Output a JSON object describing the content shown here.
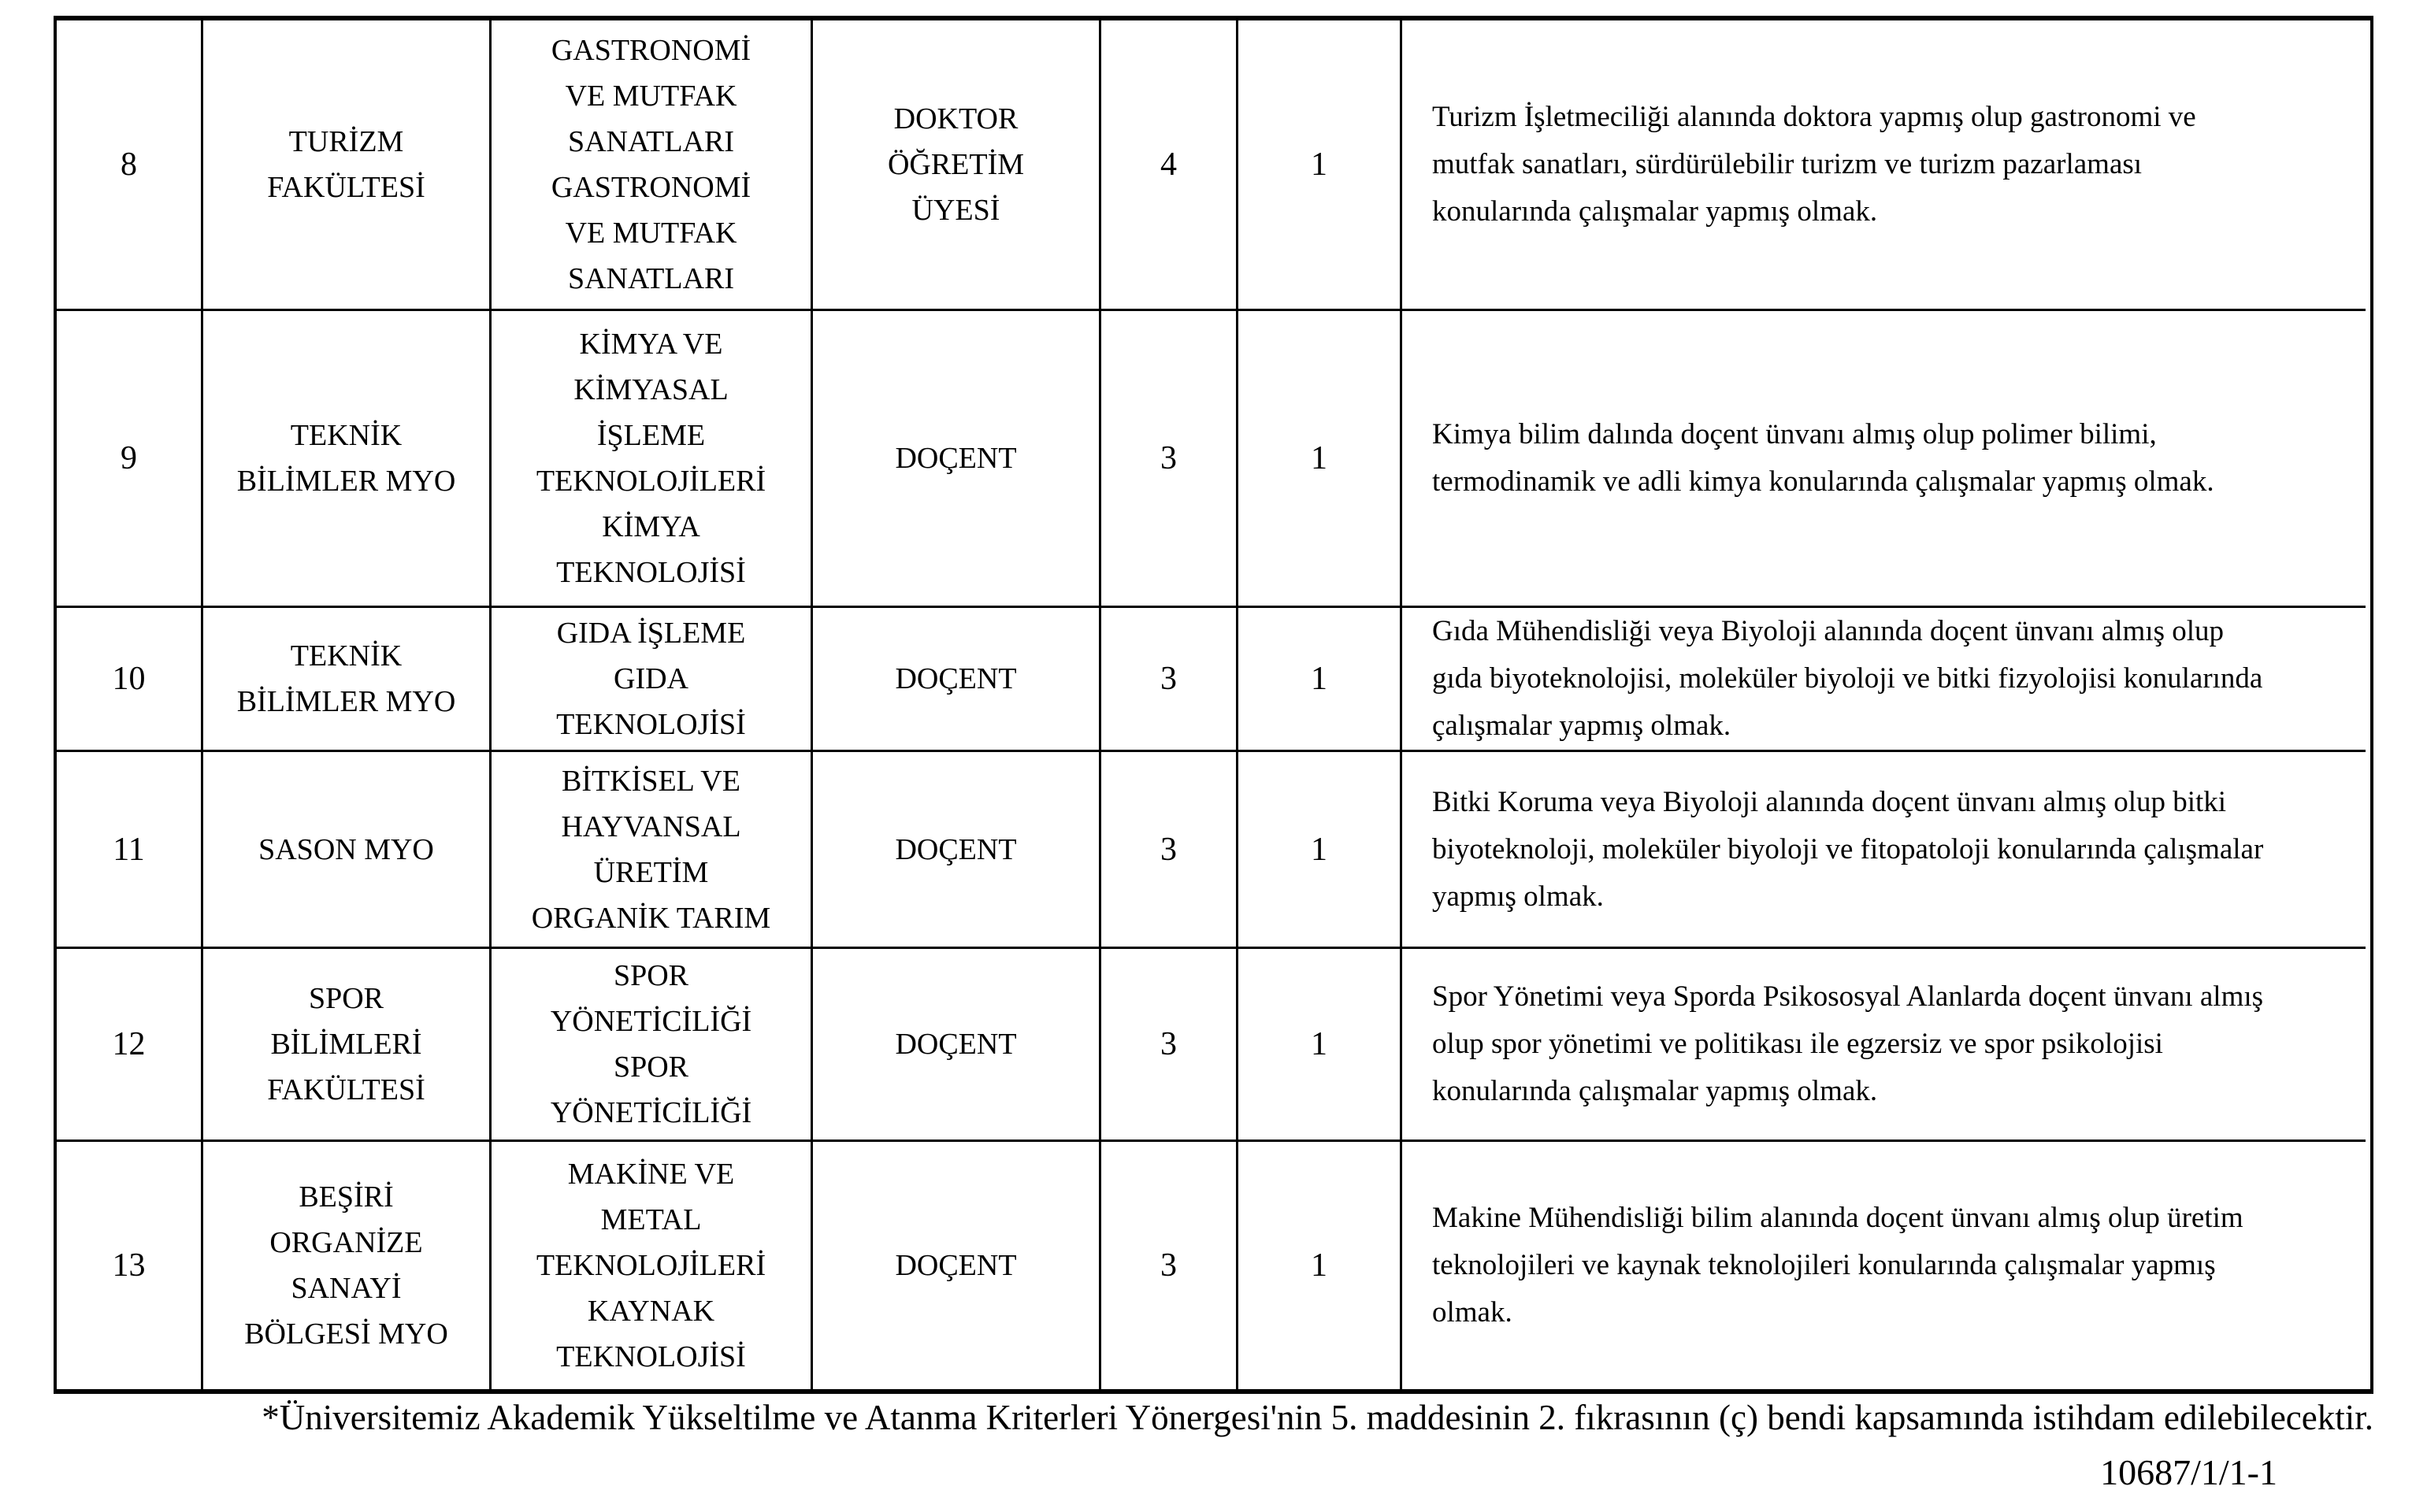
{
  "table": {
    "rows": [
      {
        "no": "8",
        "faculty_lines": [
          "TURİZM",
          "FAKÜLTESİ"
        ],
        "department_lines": [
          "GASTRONOMİ",
          "VE MUTFAK",
          "SANATLARI",
          "GASTRONOMİ",
          "VE MUTFAK",
          "SANATLARI"
        ],
        "title_lines": [
          "DOKTOR",
          "ÖĞRETİM",
          "ÜYESİ"
        ],
        "grade": "4",
        "count": "1",
        "description_lines": [
          "Turizm İşletmeciliği alanında doktora yapmış olup gastronomi ve",
          "mutfak sanatları, sürdürülebilir turizm ve turizm pazarlaması",
          "konularında çalışmalar yapmış olmak."
        ]
      },
      {
        "no": "9",
        "faculty_lines": [
          "TEKNİK",
          "BİLİMLER MYO"
        ],
        "department_lines": [
          "KİMYA VE",
          "KİMYASAL",
          "İŞLEME",
          "TEKNOLOJİLERİ",
          "KİMYA",
          "TEKNOLOJİSİ"
        ],
        "title_lines": [
          "DOÇENT"
        ],
        "grade": "3",
        "count": "1",
        "description_lines": [
          "Kimya bilim dalında doçent ünvanı almış olup polimer bilimi,",
          "termodinamik ve adli kimya konularında çalışmalar yapmış olmak."
        ]
      },
      {
        "no": "10",
        "faculty_lines": [
          "TEKNİK",
          "BİLİMLER MYO"
        ],
        "department_lines": [
          "GIDA İŞLEME",
          "GIDA",
          "TEKNOLOJİSİ"
        ],
        "title_lines": [
          "DOÇENT"
        ],
        "grade": "3",
        "count": "1",
        "description_lines": [
          "Gıda Mühendisliği veya Biyoloji alanında doçent ünvanı almış olup",
          "gıda biyoteknolojisi, moleküler biyoloji ve bitki fizyolojisi konularında",
          "çalışmalar yapmış olmak."
        ]
      },
      {
        "no": "11",
        "faculty_lines": [
          "SASON MYO"
        ],
        "department_lines": [
          "BİTKİSEL VE",
          "HAYVANSAL",
          "ÜRETİM",
          "ORGANİK TARIM"
        ],
        "title_lines": [
          "DOÇENT"
        ],
        "grade": "3",
        "count": "1",
        "description_lines": [
          "Bitki Koruma veya Biyoloji alanında doçent ünvanı almış olup bitki",
          "biyoteknoloji, moleküler biyoloji ve fitopatoloji konularında çalışmalar",
          "yapmış olmak."
        ]
      },
      {
        "no": "12",
        "faculty_lines": [
          "SPOR",
          "BİLİMLERİ",
          "FAKÜLTESİ"
        ],
        "department_lines": [
          "SPOR",
          "YÖNETİCİLİĞİ",
          "SPOR",
          "YÖNETİCİLİĞİ"
        ],
        "title_lines": [
          "DOÇENT"
        ],
        "grade": "3",
        "count": "1",
        "description_lines": [
          "Spor Yönetimi veya Sporda Psikososyal Alanlarda doçent ünvanı almış",
          "olup spor yönetimi ve politikası ile egzersiz ve spor psikolojisi",
          "konularında çalışmalar yapmış olmak."
        ]
      },
      {
        "no": "13",
        "faculty_lines": [
          "BEŞİRİ",
          "ORGANİZE",
          "SANAYİ",
          "BÖLGESİ MYO"
        ],
        "department_lines": [
          "MAKİNE VE",
          "METAL",
          "TEKNOLOJİLERİ",
          "KAYNAK",
          "TEKNOLOJİSİ"
        ],
        "title_lines": [
          "DOÇENT"
        ],
        "grade": "3",
        "count": "1",
        "description_lines": [
          "Makine Mühendisliği bilim alanında doçent ünvanı almış olup üretim",
          "teknolojileri ve kaynak teknolojileri konularında çalışmalar yapmış",
          "olmak."
        ]
      }
    ]
  },
  "document": {
    "footnote": "*Üniversitemiz Akademik Yükseltilme ve Atanma Kriterleri Yönergesi'nin 5. maddesinin 2. fıkrasının (ç) bendi kapsamında istihdam edilebilecektir.",
    "doc_number": "10687/1/1-1"
  }
}
